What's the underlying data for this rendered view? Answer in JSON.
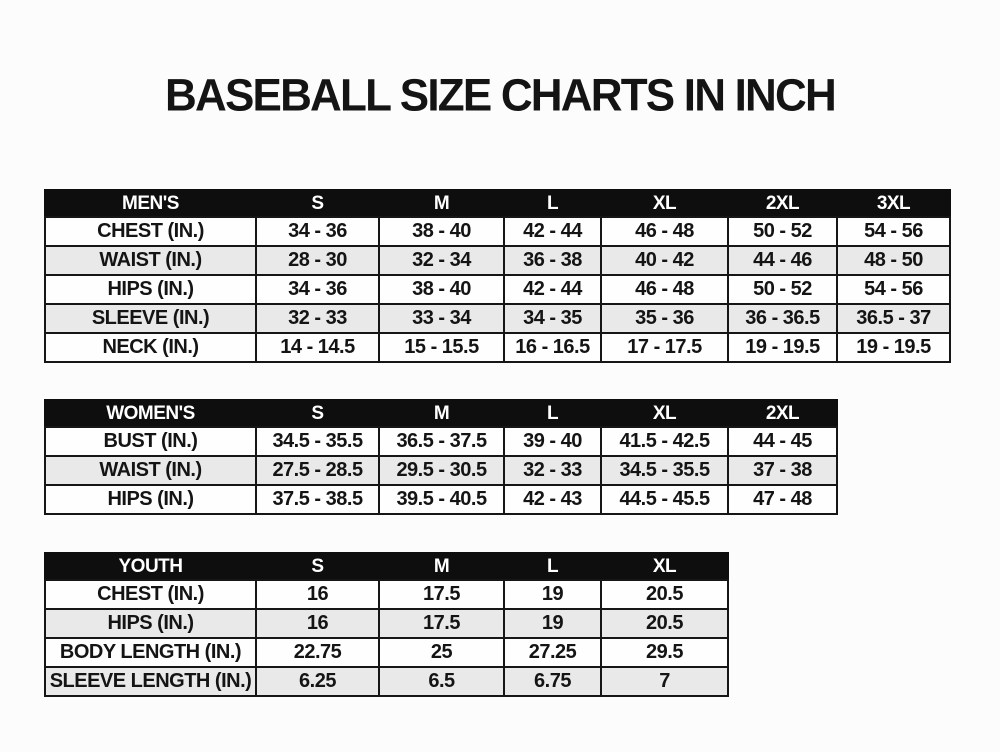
{
  "title": "BASEBALL SIZE CHARTS IN INCH",
  "colors": {
    "page_bg": "#fcfcfc",
    "header_bg": "#0e0e0e",
    "header_text": "#ffffff",
    "row_bg": "#fefefe",
    "row_alt_bg": "#e9e9e9",
    "border": "#161616",
    "text": "#141414"
  },
  "tables": [
    {
      "name": "mens",
      "header_label": "MEN'S",
      "sizes": [
        "S",
        "M",
        "L",
        "XL",
        "2XL",
        "3XL"
      ],
      "rows": [
        {
          "label": "CHEST (IN.)",
          "values": [
            "34 - 36",
            "38 - 40",
            "42 - 44",
            "46 - 48",
            "50 - 52",
            "54 - 56"
          ]
        },
        {
          "label": "WAIST (IN.)",
          "values": [
            "28 - 30",
            "32 - 34",
            "36 - 38",
            "40 - 42",
            "44 - 46",
            "48 - 50"
          ]
        },
        {
          "label": "HIPS (IN.)",
          "values": [
            "34 - 36",
            "38 - 40",
            "42 - 44",
            "46 - 48",
            "50 - 52",
            "54 - 56"
          ]
        },
        {
          "label": "SLEEVE (IN.)",
          "values": [
            "32 - 33",
            "33 - 34",
            "34 - 35",
            "35 - 36",
            "36 - 36.5",
            "36.5 - 37"
          ]
        },
        {
          "label": "NECK (IN.)",
          "values": [
            "14 - 14.5",
            "15 - 15.5",
            "16 - 16.5",
            "17 - 17.5",
            "19 - 19.5",
            "19 - 19.5"
          ]
        }
      ]
    },
    {
      "name": "womens",
      "header_label": "WOMEN'S",
      "sizes": [
        "S",
        "M",
        "L",
        "XL",
        "2XL"
      ],
      "rows": [
        {
          "label": "BUST (IN.)",
          "values": [
            "34.5 - 35.5",
            "36.5 - 37.5",
            "39 - 40",
            "41.5 - 42.5",
            "44 - 45"
          ]
        },
        {
          "label": "WAIST (IN.)",
          "values": [
            "27.5 - 28.5",
            "29.5 - 30.5",
            "32 - 33",
            "34.5 - 35.5",
            "37 - 38"
          ]
        },
        {
          "label": "HIPS (IN.)",
          "values": [
            "37.5 - 38.5",
            "39.5 - 40.5",
            "42 - 43",
            "44.5 - 45.5",
            "47 - 48"
          ]
        }
      ]
    },
    {
      "name": "youth",
      "header_label": "YOUTH",
      "sizes": [
        "S",
        "M",
        "L",
        "XL"
      ],
      "rows": [
        {
          "label": "CHEST (IN.)",
          "values": [
            "16",
            "17.5",
            "19",
            "20.5"
          ]
        },
        {
          "label": "HIPS (IN.)",
          "values": [
            "16",
            "17.5",
            "19",
            "20.5"
          ]
        },
        {
          "label": "BODY LENGTH (IN.)",
          "values": [
            "22.75",
            "25",
            "27.25",
            "29.5"
          ]
        },
        {
          "label": "SLEEVE LENGTH (IN.)",
          "values": [
            "6.25",
            "6.5",
            "6.75",
            "7"
          ]
        }
      ]
    }
  ]
}
